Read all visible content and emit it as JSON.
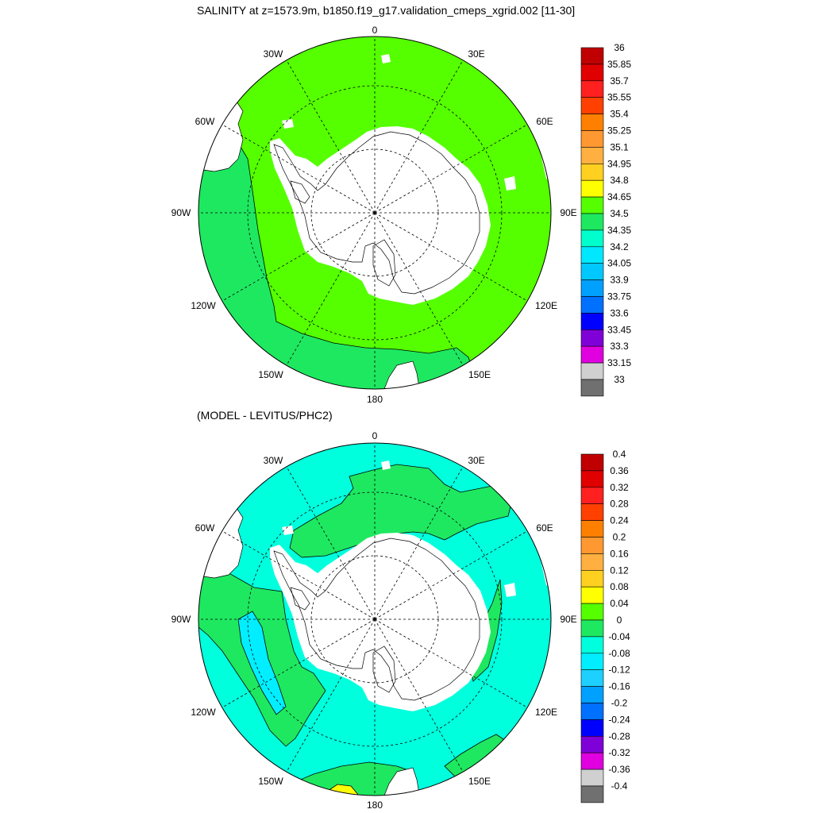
{
  "top": {
    "title": "SALINITY at z=1573.9m, b1850.f19_g17.validation_cmeps_xgrid.002 [11-30]",
    "colorbar": {
      "labels": [
        "36",
        "35.85",
        "35.7",
        "35.55",
        "35.4",
        "35.25",
        "35.1",
        "34.95",
        "34.8",
        "34.65",
        "34.5",
        "34.35",
        "34.2",
        "34.05",
        "33.9",
        "33.75",
        "33.6",
        "33.45",
        "33.3",
        "33.15",
        "33"
      ],
      "colors": [
        "#c00000",
        "#e00000",
        "#ff2020",
        "#ff4000",
        "#ff8000",
        "#ff9830",
        "#ffb040",
        "#ffd020",
        "#ffff00",
        "#55ff00",
        "#1ee860",
        "#00ffcc",
        "#00e8ff",
        "#00c8ff",
        "#00a0ff",
        "#0070ff",
        "#0000ff",
        "#8000d8",
        "#e000e0",
        "#d0d0d0",
        "#707070"
      ]
    },
    "field": {
      "ocean_value_range": [
        34.65,
        34.8
      ],
      "land_color": "#ffffff"
    }
  },
  "bottom": {
    "title": "(MODEL - LEVITUS/PHC2)",
    "colorbar": {
      "labels": [
        "0.4",
        "0.36",
        "0.32",
        "0.28",
        "0.24",
        "0.2",
        "0.16",
        "0.12",
        "0.08",
        "0.04",
        "0",
        "-0.04",
        "-0.08",
        "-0.12",
        "-0.16",
        "-0.2",
        "-0.24",
        "-0.28",
        "-0.32",
        "-0.36",
        "-0.4"
      ],
      "colors": [
        "#c00000",
        "#e00000",
        "#ff2020",
        "#ff4000",
        "#ff8000",
        "#ff9830",
        "#ffb040",
        "#ffd020",
        "#ffff00",
        "#55ff00",
        "#1ee860",
        "#00ffdd",
        "#00eeff",
        "#1ed0ff",
        "#00a0ff",
        "#0070ff",
        "#0000ff",
        "#8000d8",
        "#e000e0",
        "#d0d0d0",
        "#707070"
      ]
    }
  },
  "map": {
    "projection": "south polar stereographic",
    "lon_labels": {
      "0": "0",
      "30E": "30E",
      "60E": "60E",
      "90E": "90E",
      "120E": "120E",
      "150E": "150E",
      "180": "180",
      "150W": "150W",
      "120W": "120W",
      "90W": "90W",
      "60W": "60W",
      "30W": "30W"
    }
  }
}
